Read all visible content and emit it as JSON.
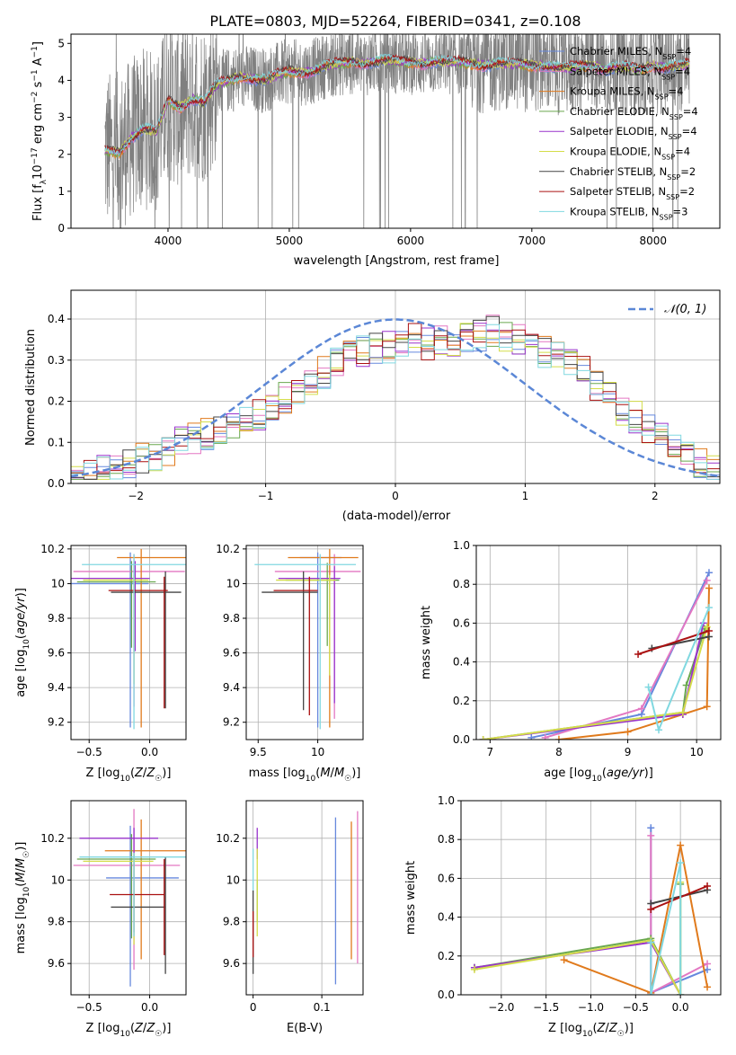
{
  "figure": {
    "title": "PLATE=0803, MJD=52264, FIBERID=0341, z=0.108"
  },
  "models": [
    {
      "name": "Chabrier MILES",
      "nssp": "4",
      "color": "#6688dd"
    },
    {
      "name": "Salpeter MILES",
      "nssp": "4",
      "color": "#e377c2"
    },
    {
      "name": "Kroupa MILES",
      "nssp": "4",
      "color": "#e07a1c"
    },
    {
      "name": "Chabrier ELODIE",
      "nssp": "4",
      "color": "#6aa84f"
    },
    {
      "name": "Salpeter ELODIE",
      "nssp": "4",
      "color": "#9933cc"
    },
    {
      "name": "Kroupa ELODIE",
      "nssp": "4",
      "color": "#d4dd4a"
    },
    {
      "name": "Chabrier STELIB",
      "nssp": "2",
      "color": "#444444"
    },
    {
      "name": "Salpeter STELIB",
      "nssp": "2",
      "color": "#aa1111"
    },
    {
      "name": "Kroupa STELIB",
      "nssp": "3",
      "color": "#80d8e0"
    }
  ],
  "chart_data": [
    {
      "id": "spectrum",
      "type": "line",
      "xlabel": "wavelength [Angstrom, rest frame]",
      "ylabel": "Flux [f_λ10^-17 erg cm^-2 s^-1 A^-1]",
      "xlim": [
        3200,
        8550
      ],
      "ylim": [
        0,
        5.25
      ],
      "xticks": [
        4000,
        5000,
        6000,
        7000,
        8000
      ],
      "yticks": [
        0,
        1,
        2,
        3,
        4,
        5
      ],
      "data_color": "#808080",
      "model_continuum": {
        "x": [
          3480,
          3600,
          3700,
          3800,
          3900,
          4000,
          4100,
          4200,
          4300,
          4400,
          4500,
          4600,
          4700,
          4800,
          4900,
          5000,
          5100,
          5200,
          5300,
          5400,
          5500,
          5600,
          5700,
          5800,
          5900,
          6000,
          6100,
          6200,
          6300,
          6400,
          6500,
          6600,
          6700,
          6800,
          6900,
          7000,
          7100,
          7200,
          7300,
          7400,
          7500,
          7600,
          7700,
          7800,
          7900,
          8000,
          8100,
          8200,
          8300
        ],
        "y": [
          2.1,
          2.05,
          2.45,
          2.7,
          2.6,
          3.45,
          3.25,
          3.5,
          3.4,
          3.9,
          4.0,
          4.1,
          4.05,
          4.0,
          4.15,
          4.25,
          4.2,
          4.25,
          4.4,
          4.45,
          4.5,
          4.45,
          4.5,
          4.55,
          4.5,
          4.5,
          4.45,
          4.5,
          4.5,
          4.5,
          4.45,
          4.4,
          4.45,
          4.45,
          4.45,
          4.4,
          4.4,
          4.35,
          4.35,
          4.4,
          4.4,
          4.3,
          4.35,
          4.35,
          4.3,
          4.4,
          4.35,
          4.4,
          4.45
        ]
      }
    },
    {
      "id": "residuals",
      "type": "histogram",
      "xlabel": "(data-model)/error",
      "ylabel": "Normed distribution",
      "xlim": [
        -2.5,
        2.5
      ],
      "ylim": [
        0,
        0.47
      ],
      "xticks": [
        -2,
        -1,
        0,
        1,
        2
      ],
      "yticks": [
        0.0,
        0.1,
        0.2,
        0.3,
        0.4
      ],
      "legend": "𝒩(0, 1)",
      "gaussian": {
        "mu": 0,
        "sigma": 1,
        "color": "#5b87d6"
      },
      "bin_edges_range": [
        -2.5,
        2.5
      ],
      "n_bins": 50,
      "base_values": [
        0.02,
        0.02,
        0.03,
        0.04,
        0.05,
        0.06,
        0.06,
        0.08,
        0.1,
        0.11,
        0.12,
        0.13,
        0.14,
        0.15,
        0.17,
        0.19,
        0.21,
        0.23,
        0.25,
        0.27,
        0.29,
        0.31,
        0.32,
        0.33,
        0.33,
        0.34,
        0.35,
        0.34,
        0.35,
        0.35,
        0.36,
        0.36,
        0.37,
        0.36,
        0.35,
        0.33,
        0.32,
        0.31,
        0.29,
        0.27,
        0.24,
        0.21,
        0.18,
        0.16,
        0.13,
        0.11,
        0.09,
        0.07,
        0.05,
        0.03
      ]
    },
    {
      "id": "z-age",
      "type": "scatter",
      "xlabel": "Z [log10(Z/Z☉)]",
      "ylabel": "age  [log10(age/yr)]",
      "xlim": [
        -0.65,
        0.3
      ],
      "ylim": [
        9.1,
        10.22
      ],
      "xticks": [
        -0.5,
        0.0
      ],
      "xticklabels": [
        "−0.5",
        "0.0"
      ],
      "yticks": [
        9.2,
        9.4,
        9.6,
        9.8,
        10.0,
        10.2
      ],
      "points": [
        {
          "model": 0,
          "x": -0.16,
          "y": 10.0,
          "xerr": [
            0.5,
            0.15
          ],
          "yerr": [
            0.83,
            0.18
          ]
        },
        {
          "model": 1,
          "x": -0.13,
          "y": 10.07,
          "xerr": [
            0.5,
            0.42
          ],
          "yerr": [
            0.78,
            0.1
          ]
        },
        {
          "model": 2,
          "x": -0.07,
          "y": 10.15,
          "xerr": [
            0.2,
            0.42
          ],
          "yerr": [
            0.98,
            0.05
          ]
        },
        {
          "model": 3,
          "x": -0.15,
          "y": 10.01,
          "xerr": [
            0.45,
            0.2
          ],
          "yerr": [
            0.38,
            0.12
          ]
        },
        {
          "model": 4,
          "x": -0.12,
          "y": 10.03,
          "xerr": [
            0.55,
            0.12
          ],
          "yerr": [
            0.42,
            0.1
          ]
        },
        {
          "model": 5,
          "x": -0.13,
          "y": 10.02,
          "xerr": [
            0.42,
            0.12
          ],
          "yerr": [
            0.6,
            0.03
          ]
        },
        {
          "model": 6,
          "x": 0.13,
          "y": 9.95,
          "xerr": [
            0.45,
            0.13
          ],
          "yerr": [
            0.67,
            0.12
          ]
        },
        {
          "model": 7,
          "x": 0.12,
          "y": 9.96,
          "xerr": [
            0.46,
            0.03
          ],
          "yerr": [
            0.68,
            0.08
          ]
        },
        {
          "model": 8,
          "x": -0.13,
          "y": 10.11,
          "xerr": [
            0.43,
            0.43
          ],
          "yerr": [
            0.95,
            0.06
          ]
        }
      ]
    },
    {
      "id": "mass-age",
      "type": "scatter",
      "xlabel": "mass [log10(M/M☉)]",
      "ylabel": "",
      "xlim": [
        9.4,
        10.38
      ],
      "ylim": [
        9.1,
        10.22
      ],
      "xticks": [
        9.5,
        10.0
      ],
      "yticks": [
        9.2,
        9.4,
        9.6,
        9.8,
        10.0,
        10.2
      ],
      "points": [
        {
          "model": 0,
          "x": 10.0,
          "y": 10.15,
          "xerr": [
            0.15,
            0.2
          ],
          "yerr": [
            0.98,
            0.03
          ]
        },
        {
          "model": 1,
          "x": 10.14,
          "y": 10.07,
          "xerr": [
            0.5,
            0.22
          ],
          "yerr": [
            0.85,
            0.1
          ]
        },
        {
          "model": 2,
          "x": 10.1,
          "y": 10.15,
          "xerr": [
            0.35,
            0.24
          ],
          "yerr": [
            0.98,
            0.05
          ]
        },
        {
          "model": 3,
          "x": 10.08,
          "y": 10.02,
          "xerr": [
            0.35,
            0.1
          ],
          "yerr": [
            0.38,
            0.1
          ]
        },
        {
          "model": 4,
          "x": 10.14,
          "y": 10.03,
          "xerr": [
            0.47,
            0.05
          ],
          "yerr": [
            0.72,
            0.07
          ]
        },
        {
          "model": 5,
          "x": 10.1,
          "y": 10.02,
          "xerr": [
            0.45,
            0.05
          ],
          "yerr": [
            0.55,
            0.03
          ]
        },
        {
          "model": 6,
          "x": 9.88,
          "y": 9.95,
          "xerr": [
            0.35,
            0.12
          ],
          "yerr": [
            0.68,
            0.12
          ]
        },
        {
          "model": 7,
          "x": 9.93,
          "y": 9.96,
          "xerr": [
            0.3,
            0.07
          ],
          "yerr": [
            0.72,
            0.08
          ]
        },
        {
          "model": 8,
          "x": 10.02,
          "y": 10.11,
          "xerr": [
            0.55,
            0.3
          ],
          "yerr": [
            0.95,
            0.06
          ]
        }
      ]
    },
    {
      "id": "age-weight",
      "type": "line",
      "xlabel": "age  [log10(age/yr)]",
      "ylabel": "mass weight",
      "xlim": [
        6.8,
        10.35
      ],
      "ylim": [
        0,
        1.0
      ],
      "xticks": [
        7,
        8,
        9,
        10
      ],
      "yticks": [
        0.0,
        0.2,
        0.4,
        0.6,
        0.8,
        1.0
      ],
      "series": [
        {
          "model": 0,
          "x": [
            7.6,
            9.2,
            10.18
          ],
          "y": [
            0.01,
            0.13,
            0.86
          ]
        },
        {
          "model": 1,
          "x": [
            7.8,
            9.2,
            10.15
          ],
          "y": [
            0.01,
            0.16,
            0.82
          ]
        },
        {
          "model": 2,
          "x": [
            8.0,
            9.0,
            9.8,
            10.15,
            10.18
          ],
          "y": [
            0.0,
            0.04,
            0.13,
            0.17,
            0.78
          ]
        },
        {
          "model": 3,
          "x": [
            6.9,
            9.8,
            9.85,
            10.12
          ],
          "y": [
            0.0,
            0.14,
            0.28,
            0.57
          ]
        },
        {
          "model": 4,
          "x": [
            6.9,
            9.8,
            10.1
          ],
          "y": [
            0.0,
            0.13,
            0.6
          ]
        },
        {
          "model": 5,
          "x": [
            6.9,
            9.8,
            10.15
          ],
          "y": [
            0.0,
            0.14,
            0.58
          ]
        },
        {
          "model": 6,
          "x": [
            9.35,
            10.18
          ],
          "y": [
            0.47,
            0.53
          ]
        },
        {
          "model": 7,
          "x": [
            9.15,
            10.18
          ],
          "y": [
            0.44,
            0.56
          ]
        },
        {
          "model": 8,
          "x": [
            9.3,
            9.45,
            10.18
          ],
          "y": [
            0.27,
            0.05,
            0.68
          ]
        }
      ]
    },
    {
      "id": "z-mass",
      "type": "scatter",
      "xlabel": "Z [log10(Z/Z☉)]",
      "ylabel": "mass [log10(M/M☉)]",
      "xlim": [
        -0.65,
        0.3
      ],
      "ylim": [
        9.45,
        10.38
      ],
      "xticks": [
        -0.5,
        0.0
      ],
      "xticklabels": [
        "−0.5",
        "0.0"
      ],
      "yticks": [
        9.6,
        9.8,
        10.0,
        10.2
      ],
      "points": [
        {
          "model": 0,
          "x": -0.16,
          "y": 10.01,
          "xerr": [
            0.2,
            0.4
          ],
          "yerr": [
            0.52,
            0.25
          ]
        },
        {
          "model": 1,
          "x": -0.13,
          "y": 10.07,
          "xerr": [
            0.5,
            0.38
          ],
          "yerr": [
            0.5,
            0.27
          ]
        },
        {
          "model": 2,
          "x": -0.07,
          "y": 10.14,
          "xerr": [
            0.3,
            0.4
          ],
          "yerr": [
            0.52,
            0.15
          ]
        },
        {
          "model": 3,
          "x": -0.15,
          "y": 10.1,
          "xerr": [
            0.45,
            0.2
          ],
          "yerr": [
            0.38,
            0.12
          ]
        },
        {
          "model": 4,
          "x": -0.13,
          "y": 10.2,
          "xerr": [
            0.45,
            0.2
          ],
          "yerr": [
            0.45,
            0.05
          ]
        },
        {
          "model": 5,
          "x": -0.13,
          "y": 10.09,
          "xerr": [
            0.42,
            0.16
          ],
          "yerr": [
            0.4,
            0.04
          ]
        },
        {
          "model": 6,
          "x": 0.13,
          "y": 9.87,
          "xerr": [
            0.45,
            0.0
          ],
          "yerr": [
            0.32,
            0.24
          ]
        },
        {
          "model": 7,
          "x": 0.12,
          "y": 9.93,
          "xerr": [
            0.45,
            0.0
          ],
          "yerr": [
            0.29,
            0.17
          ]
        },
        {
          "model": 8,
          "x": -0.13,
          "y": 10.11,
          "xerr": [
            0.45,
            0.45
          ],
          "yerr": [
            0.38,
            0.02
          ]
        }
      ]
    },
    {
      "id": "ebv-mass",
      "type": "scatter",
      "xlabel": "E(B-V)",
      "ylabel": "",
      "xlim": [
        -0.01,
        0.16
      ],
      "ylim": [
        9.45,
        10.38
      ],
      "xticks": [
        0.0,
        0.1
      ],
      "yticks": [
        9.6,
        9.8,
        10.0,
        10.2
      ],
      "points": [
        {
          "model": 0,
          "x": 0.12,
          "y": 9.9,
          "yerr": [
            0.4,
            0.4
          ]
        },
        {
          "model": 1,
          "x": 0.152,
          "y": 9.95,
          "yerr": [
            0.35,
            0.38
          ]
        },
        {
          "model": 2,
          "x": 0.143,
          "y": 9.95,
          "yerr": [
            0.33,
            0.33
          ]
        },
        {
          "model": 3,
          "x": 0.006,
          "y": 9.9,
          "yerr": [
            0.1,
            0.1
          ]
        },
        {
          "model": 4,
          "x": 0.006,
          "y": 10.15,
          "yerr": [
            0.05,
            0.1
          ]
        },
        {
          "model": 5,
          "x": 0.006,
          "y": 9.95,
          "yerr": [
            0.22,
            0.2
          ]
        },
        {
          "model": 6,
          "x": 0.0,
          "y": 9.75,
          "yerr": [
            0.2,
            0.2
          ]
        },
        {
          "model": 7,
          "x": 0.0,
          "y": 9.75,
          "yerr": [
            0.12,
            0.1
          ]
        },
        {
          "model": 8,
          "x": 0.0,
          "y": 10.05,
          "yerr": [
            0.1,
            0.1
          ]
        }
      ]
    },
    {
      "id": "z-weight",
      "type": "line",
      "xlabel": "Z [log10(Z/Z☉)]",
      "ylabel": "mass weight",
      "xlim": [
        -2.45,
        0.45
      ],
      "ylim": [
        0,
        1.0
      ],
      "xticks": [
        -2.0,
        -1.5,
        -1.0,
        -0.5,
        0.0
      ],
      "xticklabels": [
        "−2.0",
        "−1.5",
        "−1.0",
        "−0.5",
        "0.0"
      ],
      "yticks": [
        0.0,
        0.2,
        0.4,
        0.6,
        0.8,
        1.0
      ],
      "series": [
        {
          "model": 0,
          "x": [
            -0.33,
            -0.33,
            0.3
          ],
          "y": [
            0.86,
            0.01,
            0.13
          ]
        },
        {
          "model": 1,
          "x": [
            -0.33,
            -0.33,
            0.3
          ],
          "y": [
            0.82,
            0.01,
            0.16
          ]
        },
        {
          "model": 2,
          "x": [
            -1.3,
            -0.33,
            0.0,
            0.3
          ],
          "y": [
            0.18,
            0.01,
            0.77,
            0.04
          ]
        },
        {
          "model": 3,
          "x": [
            -2.3,
            -0.33,
            0.0,
            0.0
          ],
          "y": [
            0.14,
            0.29,
            0.0,
            0.57
          ]
        },
        {
          "model": 4,
          "x": [
            -2.3,
            -0.33,
            0.0
          ],
          "y": [
            0.14,
            0.27,
            0.0
          ]
        },
        {
          "model": 5,
          "x": [
            -2.3,
            -0.33,
            0.0,
            0.0
          ],
          "y": [
            0.13,
            0.28,
            0.0,
            0.58
          ]
        },
        {
          "model": 6,
          "x": [
            -0.33,
            0.3
          ],
          "y": [
            0.47,
            0.54
          ]
        },
        {
          "model": 7,
          "x": [
            -0.33,
            0.3
          ],
          "y": [
            0.44,
            0.56
          ]
        },
        {
          "model": 8,
          "x": [
            -0.33,
            -0.33,
            0.0,
            0.0
          ],
          "y": [
            0.27,
            0.0,
            0.68,
            0.0
          ]
        }
      ]
    }
  ]
}
